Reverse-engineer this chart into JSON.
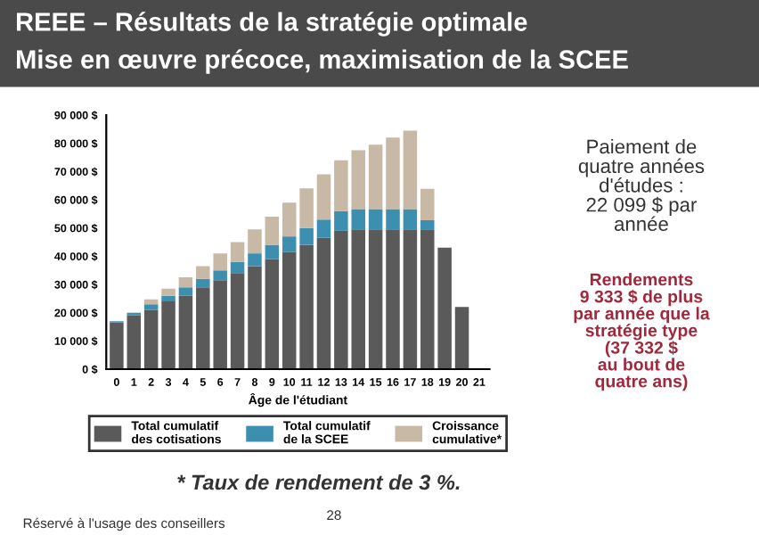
{
  "chart_data": {
    "type": "bar",
    "stacked": true,
    "title": "REEE – Résultats de la stratégie optimale",
    "subtitle": "Mise en œuvre précoce, maximisation de la SCEE",
    "xlabel": "Âge de l'étudiant",
    "categories": [
      "0",
      "1",
      "2",
      "3",
      "4",
      "5",
      "6",
      "7",
      "8",
      "9",
      "10",
      "11",
      "12",
      "13",
      "14",
      "15",
      "16",
      "17",
      "18",
      "19",
      "20",
      "21"
    ],
    "series": [
      {
        "name": "Total cumulatif\ndes cotisations",
        "color": "#5a5a5a",
        "values": [
          16500,
          19000,
          21000,
          24000,
          26000,
          29000,
          31500,
          34000,
          36500,
          39000,
          41500,
          44000,
          46500,
          49000,
          49500,
          49500,
          49500,
          49500,
          49500,
          43000,
          22000,
          0
        ]
      },
      {
        "name": "Total cumulatif\nde la SCEE",
        "color": "#3d8fb0",
        "values": [
          500,
          1000,
          2000,
          2000,
          3000,
          3000,
          3500,
          4000,
          4500,
          5000,
          5500,
          6000,
          6500,
          7000,
          7200,
          7200,
          7200,
          7200,
          3200,
          0,
          0,
          0
        ]
      },
      {
        "name": "Croissance\ncumulative*",
        "color": "#c8b8a6",
        "values": [
          0,
          null,
          1700,
          2500,
          3500,
          4500,
          6000,
          7000,
          8500,
          10000,
          12000,
          14000,
          16000,
          18000,
          20800,
          22800,
          25300,
          27800,
          11200,
          0,
          0,
          0
        ]
      }
    ],
    "ylim": [
      0,
      90000
    ],
    "yticks": [
      {
        "value": 0,
        "label": "0 $"
      },
      {
        "value": 10000,
        "label": "10 000 $"
      },
      {
        "value": 20000,
        "label": "20 000 $"
      },
      {
        "value": 30000,
        "label": "30 000 $"
      },
      {
        "value": 40000,
        "label": "40 000 $"
      },
      {
        "value": 50000,
        "label": "50 000 $"
      },
      {
        "value": 60000,
        "label": "60 000 $"
      },
      {
        "value": 70000,
        "label": "70 000 $"
      },
      {
        "value": 80000,
        "label": "80 000 $"
      },
      {
        "value": 90000,
        "label": "90 000 $"
      }
    ],
    "grid": false,
    "legend": "bottom",
    "annotations": [
      "Paiement de\nquatre années\nd'études :\n22 099 $ par\nannée",
      "Rendements\n9 333 $ de plus\npar année que la\nstratégie type\n(37 332 $\nau bout de\nquatre ans)",
      "* Taux de rendement de 3 %.",
      "Réservé à l'usage des conseillers",
      "28"
    ]
  }
}
